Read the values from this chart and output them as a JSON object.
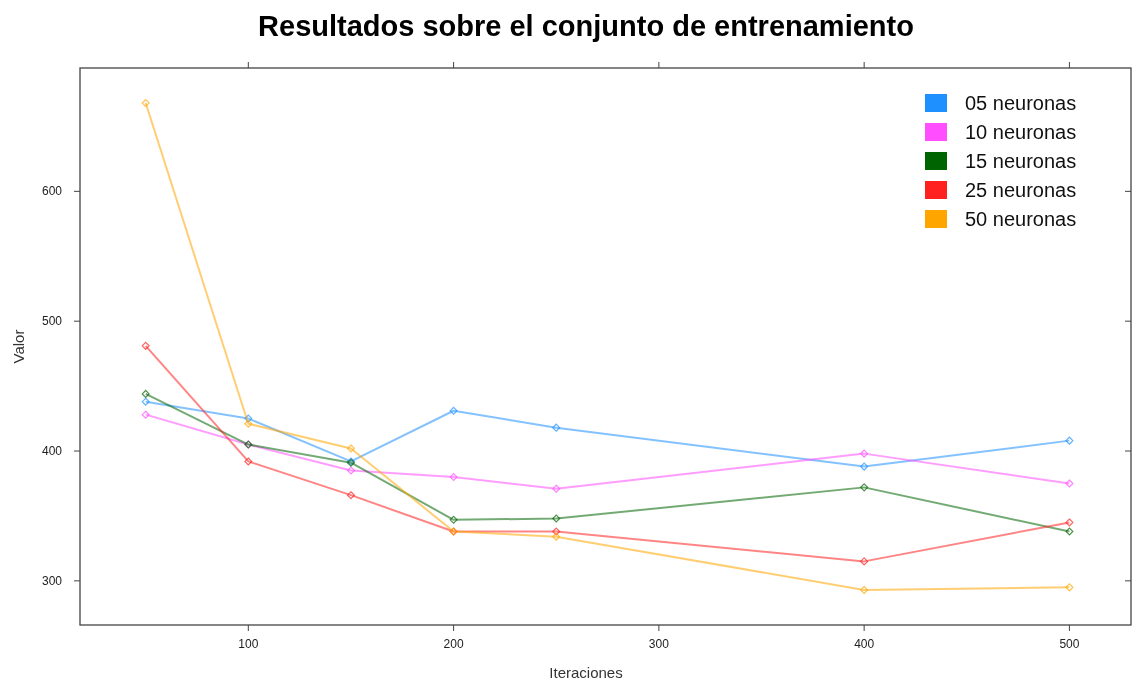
{
  "chart_data": {
    "type": "line",
    "title": "Resultados sobre el conjunto de entrenamiento",
    "xlabel": "Iteraciones",
    "ylabel": "Valor",
    "x": [
      50,
      100,
      150,
      200,
      250,
      400,
      500
    ],
    "xlim": [
      18,
      530
    ],
    "xticks": [
      100,
      200,
      300,
      400,
      500
    ],
    "ylim": [
      266,
      695
    ],
    "yticks": [
      300,
      400,
      500,
      600
    ],
    "marker": "diamond",
    "grid": false,
    "legend": "top right",
    "series": [
      {
        "name": "05 neuronas",
        "color": "#1e90ff",
        "values": [
          438,
          425,
          392,
          431,
          418,
          388,
          408
        ]
      },
      {
        "name": "10 neuronas",
        "color": "#ff4dff",
        "values": [
          428,
          405,
          385,
          380,
          371,
          398,
          375
        ]
      },
      {
        "name": "15 neuronas",
        "color": "#006400",
        "values": [
          444,
          405,
          391,
          347,
          348,
          372,
          338
        ]
      },
      {
        "name": "25 neuronas",
        "color": "#ff2020",
        "values": [
          481,
          392,
          366,
          338,
          338,
          315,
          345
        ]
      },
      {
        "name": "50 neuronas",
        "color": "#ffa500",
        "values": [
          668,
          421,
          402,
          338,
          334,
          293,
          295
        ]
      }
    ]
  }
}
